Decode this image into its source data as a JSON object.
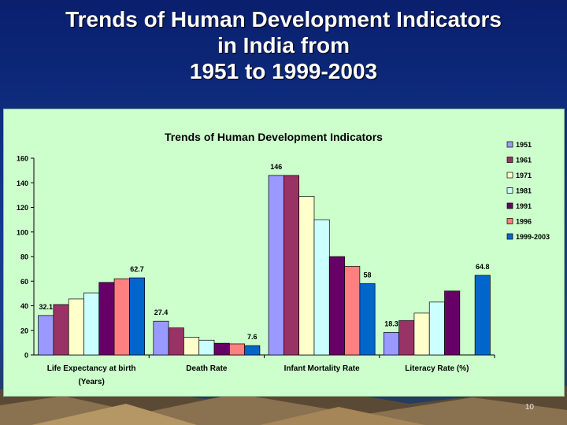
{
  "slide": {
    "title_lines": [
      "Trends of Human Development Indicators",
      "in India from",
      "1951 to 1999-2003"
    ],
    "page_number": "10"
  },
  "colors": {
    "background": "#123a8f",
    "plot_background": "#ccffcc",
    "series": [
      "#9999ff",
      "#993366",
      "#ffffcc",
      "#ccffff",
      "#660066",
      "#ff8080",
      "#0066cc"
    ]
  },
  "chart_data": {
    "type": "bar",
    "title": "Trends of Human Development Indicators",
    "categories": [
      [
        "Life Expectancy at birth",
        "(Years)"
      ],
      [
        "Death Rate"
      ],
      [
        "Infant Mortality Rate"
      ],
      [
        "Literacy Rate (%)"
      ]
    ],
    "series": [
      {
        "name": "1951",
        "values": [
          32.1,
          27.4,
          146,
          18.3
        ]
      },
      {
        "name": "1961",
        "values": [
          41,
          22,
          146,
          28
        ]
      },
      {
        "name": "1971",
        "values": [
          45.5,
          14.5,
          129,
          34
        ]
      },
      {
        "name": "1981",
        "values": [
          50.5,
          12,
          110,
          43
        ]
      },
      {
        "name": "1991",
        "values": [
          59,
          9.5,
          80,
          52
        ]
      },
      {
        "name": "1996",
        "values": [
          62,
          9,
          72,
          null
        ]
      },
      {
        "name": "1999-2003",
        "values": [
          62.7,
          7.6,
          58,
          64.8
        ]
      }
    ],
    "data_labels": [
      {
        "category": 0,
        "series": 0,
        "text": "32.1"
      },
      {
        "category": 0,
        "series": 6,
        "text": "62.7"
      },
      {
        "category": 1,
        "series": 0,
        "text": "27.4"
      },
      {
        "category": 1,
        "series": 6,
        "text": "7.6"
      },
      {
        "category": 2,
        "series": 0,
        "text": "146"
      },
      {
        "category": 2,
        "series": 6,
        "text": "58"
      },
      {
        "category": 3,
        "series": 0,
        "text": "18.3"
      },
      {
        "category": 3,
        "series": 6,
        "text": "64.8"
      }
    ],
    "ylim": [
      0,
      160
    ],
    "yticks": [
      "0",
      "20",
      "40",
      "60",
      "80",
      "100",
      "120",
      "140",
      "160"
    ],
    "grid": false,
    "legend": "right"
  }
}
